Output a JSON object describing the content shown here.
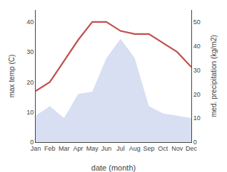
{
  "chart_data": {
    "type": "line",
    "categories": [
      "Jan",
      "Feb",
      "Mar",
      "Apr",
      "May",
      "Jun",
      "Jul",
      "Aug",
      "Sep",
      "Oct",
      "Nov",
      "Dec"
    ],
    "series": [
      {
        "type": "area",
        "axis": "y2",
        "color": "#b8c4e8",
        "values": [
          11,
          15,
          10,
          20,
          21,
          35,
          43,
          35,
          15,
          12,
          11,
          10
        ]
      },
      {
        "type": "line",
        "color": "#c0504d",
        "values": [
          17,
          20,
          27,
          34,
          40,
          40,
          37,
          36,
          36,
          33,
          30,
          25
        ]
      }
    ],
    "xlabel": "date (month)",
    "ylabel": "max temp (C)",
    "y2label": "med. precipitation (kg/m2)",
    "ylim": [
      0,
      44
    ],
    "yticks": [
      0,
      10,
      20,
      30,
      40
    ],
    "y2lim": [
      0,
      55
    ],
    "y2ticks": [
      0,
      10,
      20,
      30,
      40,
      50
    ],
    "grid": false
  }
}
